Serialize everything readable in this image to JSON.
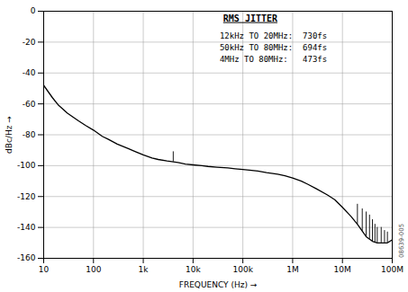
{
  "chart_data": {
    "type": "line",
    "xlabel": "FREQUENCY (Hz)",
    "ylabel": "dBc/Hz",
    "log": "x",
    "grid": true,
    "color": "#000000",
    "xlim": [
      10,
      100000000
    ],
    "xticks": [
      10,
      100,
      {
        "value": 1000,
        "label": "1k"
      },
      {
        "value": 10000,
        "label": "10k"
      },
      {
        "value": 100000,
        "label": "100k"
      },
      {
        "value": 1000000,
        "label": "1M"
      },
      {
        "value": 10000000,
        "label": "10M"
      },
      {
        "value": 100000000,
        "label": "100M"
      }
    ],
    "ylim": [
      -160,
      0
    ],
    "yticks": [
      0,
      -20,
      -40,
      -60,
      -80,
      -100,
      -120,
      -140,
      -160
    ],
    "x": [
      10,
      15,
      20,
      30,
      50,
      70,
      100,
      150,
      200,
      300,
      500,
      700,
      1000,
      1500,
      2000,
      3000,
      5000,
      7000,
      10000,
      15000,
      20000,
      30000,
      50000,
      70000,
      100000,
      150000,
      200000,
      300000,
      500000,
      700000,
      1000000,
      1500000,
      2000000,
      3000000,
      5000000,
      7000000,
      10000000,
      15000000,
      20000000,
      30000000,
      40000000,
      50000000,
      60000000,
      70000000,
      80000000,
      100000000
    ],
    "values": [
      -48,
      -56,
      -61,
      -66,
      -71,
      -74,
      -77,
      -81,
      -83,
      -86,
      -89,
      -91,
      -93,
      -95,
      -96,
      -97,
      -98,
      -99,
      -99.5,
      -100,
      -100.5,
      -101,
      -101.5,
      -102,
      -102.5,
      -103,
      -103.5,
      -104.5,
      -105.5,
      -106.5,
      -108,
      -110,
      -112,
      -115,
      -119,
      -122,
      -127,
      -133,
      -138,
      -146,
      -149,
      -150,
      -150,
      -150,
      -150,
      -148
    ],
    "spurs": {
      "x": [
        4000,
        20000000,
        25000000,
        30000000,
        35000000,
        40000000,
        45000000,
        50000000,
        60000000,
        70000000,
        80000000,
        100000000
      ],
      "base": [
        -97.56,
        -138,
        -142.4,
        -146,
        -147.61,
        -149,
        -149.53,
        -150,
        -150,
        -150,
        -150,
        -148
      ],
      "top": [
        -91,
        -125,
        -128,
        -130,
        -132,
        -135,
        -138,
        -140,
        -140,
        -142,
        -143,
        -128
      ]
    },
    "annotation_title": "RMS JITTER",
    "annotation_lines": [
      "12kHz TO 20MHz:  730fs",
      "50kHz TO 80MHz:  694fs",
      "4MHz TO 80MHz:   473fs"
    ],
    "watermark": "08639-005"
  }
}
